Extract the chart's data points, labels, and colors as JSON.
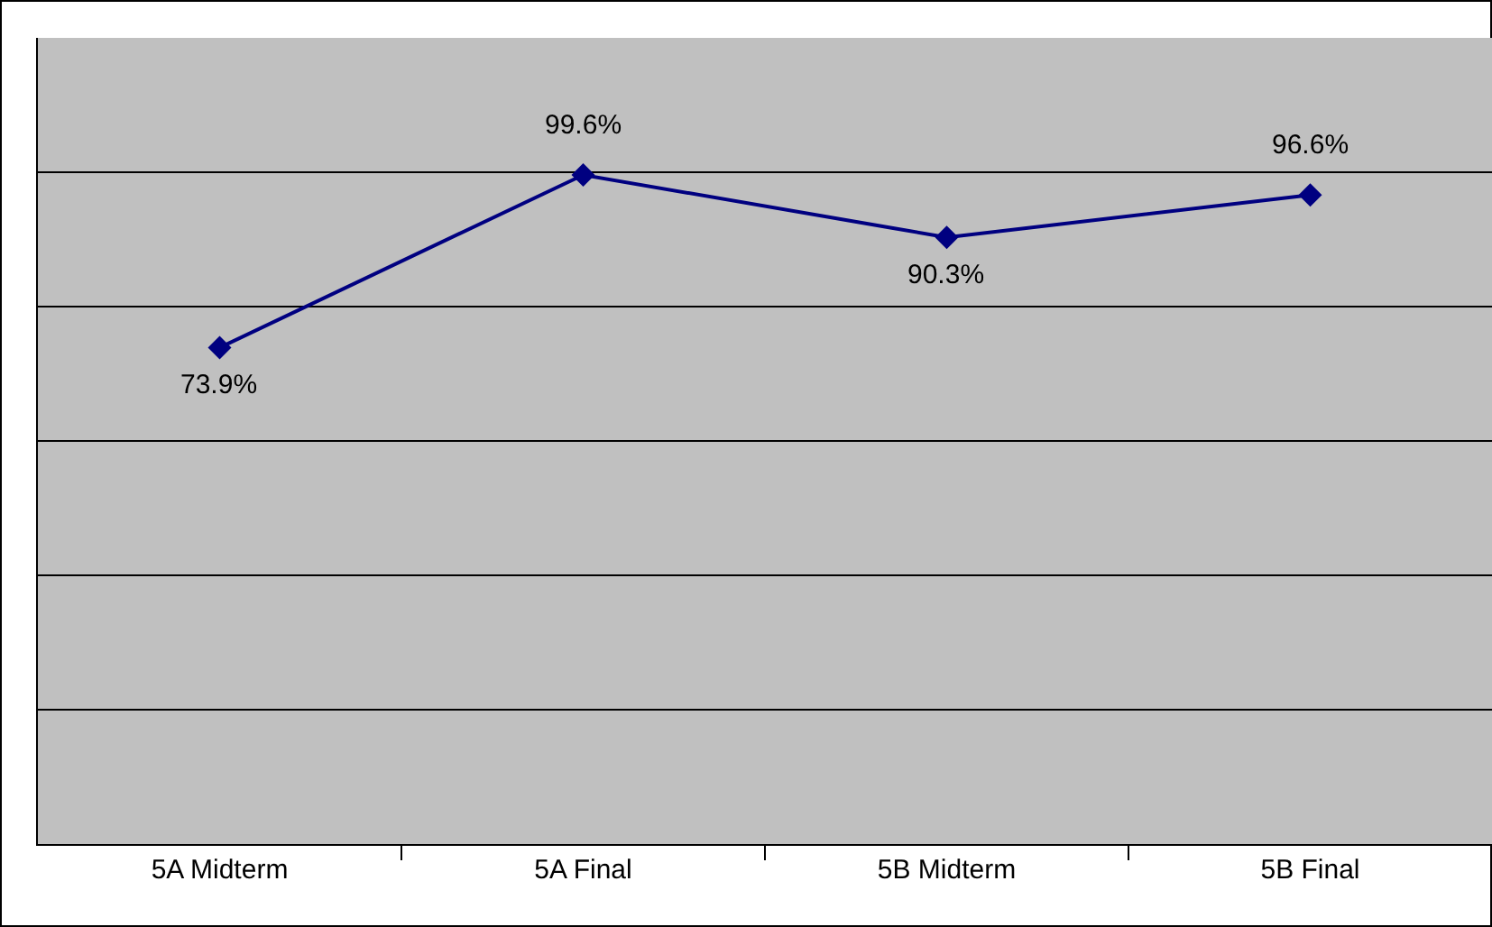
{
  "chart_data": {
    "type": "line",
    "categories": [
      "5A Midterm",
      "5A Final",
      "5B Midterm",
      "5B Final"
    ],
    "series": [
      {
        "color": "#000080",
        "values": [
          73.9,
          99.6,
          90.3,
          96.6
        ],
        "value_labels": [
          "73.9%",
          "99.6%",
          "90.3%",
          "96.6%"
        ]
      }
    ],
    "ylim": [
      0,
      120
    ],
    "yticks": [
      {
        "value": 0,
        "label": null
      },
      {
        "value": 20,
        "label": null
      },
      {
        "value": 40,
        "label": null
      },
      {
        "value": 60,
        "label": null
      },
      {
        "value": 80,
        "label": null
      },
      {
        "value": 100,
        "label": null
      },
      {
        "value": 120,
        "label": null
      }
    ],
    "grid": "y",
    "marker": "diamond",
    "line_style": "solid",
    "legend": false,
    "tick_labels": "x"
  }
}
